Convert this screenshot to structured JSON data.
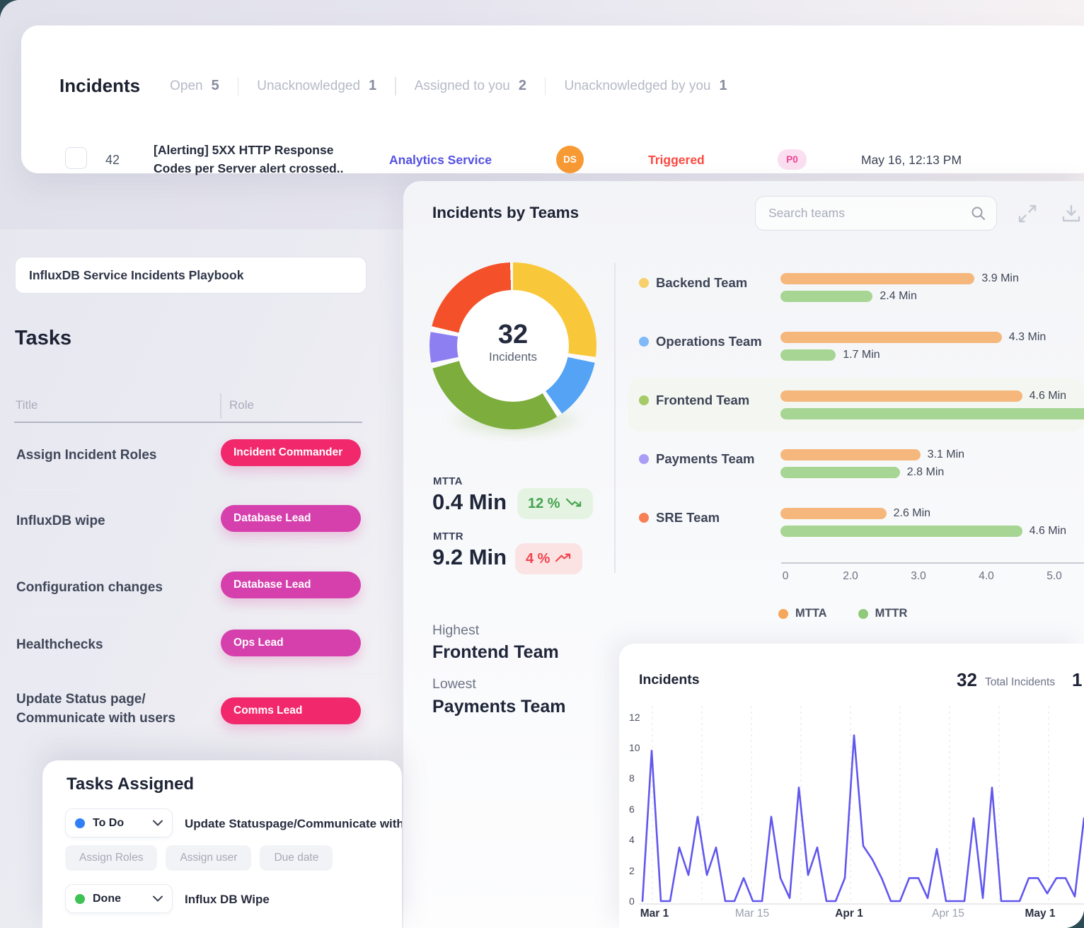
{
  "incidents_panel": {
    "title": "Incidents",
    "tabs": [
      {
        "label": "Open",
        "count": "5"
      },
      {
        "label": "Unacknowledged",
        "count": "1"
      },
      {
        "label": "Assigned to you",
        "count": "2"
      },
      {
        "label": "Unacknowledged by you",
        "count": "1"
      }
    ],
    "row": {
      "id": "42",
      "title": "[Alerting] 5XX HTTP Response\nCodes per Server alert crossed..",
      "service": "Analytics Service",
      "assignee_initials": "DS",
      "assignee_color": "#f89a33",
      "status": "Triggered",
      "priority": "P0",
      "timestamp": "May 16, 12:13 PM"
    }
  },
  "playbook": {
    "title": "InfluxDB Service Incidents Playbook"
  },
  "tasks_section": {
    "heading": "Tasks",
    "col_title": "Title",
    "col_role": "Role",
    "rows": [
      {
        "title": "Assign Incident Roles",
        "role": "Incident Commander",
        "badge_color": "#f2286c"
      },
      {
        "title": "InfluxDB wipe",
        "role": "Database Lead",
        "badge_color": "#d640ad"
      },
      {
        "title": "Configuration changes",
        "role": "Database Lead",
        "badge_color": "#d640ad"
      },
      {
        "title": "Healthchecks",
        "role": "Ops Lead",
        "badge_color": "#d640ad"
      },
      {
        "title": "Update Status page/\nCommunicate with users",
        "role": "Comms Lead",
        "badge_color": "#f2286c"
      }
    ]
  },
  "tasks_assigned": {
    "heading": "Tasks Assigned",
    "buttons": [
      "Assign Roles",
      "Assign user",
      "Due date"
    ],
    "items": [
      {
        "status": "To Do",
        "dot_color": "#2f80f6",
        "task": "Update Statuspage/Communicate with us"
      },
      {
        "status": "Done",
        "dot_color": "#3ec254",
        "task": "Influx DB Wipe"
      }
    ]
  },
  "teams_panel": {
    "title": "Incidents by Teams",
    "search_placeholder": "Search teams",
    "mtta": {
      "label": "MTTA",
      "value": "0.4 Min",
      "delta": "12 %",
      "trend": "down"
    },
    "mttr": {
      "label": "MTTR",
      "value": "9.2 Min",
      "delta": "4 %",
      "trend": "up"
    },
    "highest_label": "Highest",
    "highest_team": "Frontend Team",
    "lowest_label": "Lowest",
    "lowest_team": "Payments Team"
  },
  "incidents_chart_card": {
    "title": "Incidents",
    "total_value": "32",
    "total_label": "Total Incidents",
    "partial_right_text": "1"
  },
  "chart_data": [
    {
      "type": "pie",
      "subtype": "donut",
      "center_value": "32",
      "center_label": "Incidents",
      "segments": [
        {
          "label": "Backend Team",
          "value": 9,
          "color": "#f9c73a"
        },
        {
          "label": "Operations Team",
          "value": 4,
          "color": "#54a3f4"
        },
        {
          "label": "Frontend Team",
          "value": 10,
          "color": "#7cad3d"
        },
        {
          "label": "Payments Team",
          "value": 2,
          "color": "#8d7ff2"
        },
        {
          "label": "SRE Team",
          "value": 7,
          "color": "#f4502a"
        }
      ]
    },
    {
      "type": "bar",
      "orientation": "horizontal",
      "categories": [
        "Backend Team",
        "Operations Team",
        "Frontend Team",
        "Payments Team",
        "SRE Team"
      ],
      "dot_colors": [
        "#f8d06b",
        "#7fb9f8",
        "#a5cb68",
        "#a99df6",
        "#f87e55"
      ],
      "series": [
        {
          "name": "MTTA",
          "color": "#f6b77c",
          "values": [
            3.9,
            4.3,
            4.6,
            3.1,
            2.6
          ],
          "labels": [
            "3.9 Min",
            "4.3 Min",
            "4.6 Min",
            "3.1 Min",
            "2.6 Min"
          ]
        },
        {
          "name": "MTTR",
          "color": "#a7d593",
          "values": [
            2.4,
            1.7,
            5.8,
            2.8,
            4.6
          ],
          "labels": [
            "2.4 Min",
            "1.7 Min",
            "",
            "2.8 Min",
            "4.6 Min"
          ]
        }
      ],
      "x_ticks": [
        "0",
        "2.0",
        "3.0",
        "4.0",
        "5.0"
      ],
      "xlim": [
        0,
        5
      ],
      "highlighted_category": "Frontend Team",
      "legend": [
        {
          "name": "MTTA",
          "color": "#f5a85c"
        },
        {
          "name": "MTTR",
          "color": "#8fca7a"
        }
      ]
    },
    {
      "type": "line",
      "title": "Incidents",
      "total": "32",
      "color": "#6157ee",
      "x_labels": [
        "Mar 1",
        "Mar 15",
        "Apr 1",
        "Apr 15",
        "May 1"
      ],
      "y_ticks": [
        0,
        2,
        4,
        6,
        8,
        10,
        12
      ],
      "ylim": [
        0,
        12
      ],
      "grid": "vertical-dashed",
      "values": [
        0,
        9.8,
        0,
        0,
        3.5,
        1.7,
        5.5,
        1.7,
        3.5,
        0,
        0,
        1.5,
        0,
        0,
        5.5,
        1.5,
        0.2,
        7.4,
        1.7,
        3.5,
        0,
        0,
        1.5,
        10.8,
        3.6,
        2.7,
        1.5,
        0,
        0,
        1.5,
        1.5,
        0.2,
        3.4,
        0,
        0,
        0,
        5.4,
        0.2,
        7.4,
        0,
        0,
        0,
        1.5,
        1.5,
        0.5,
        1.5,
        1.5,
        0.3,
        5.4,
        2.5
      ]
    }
  ]
}
